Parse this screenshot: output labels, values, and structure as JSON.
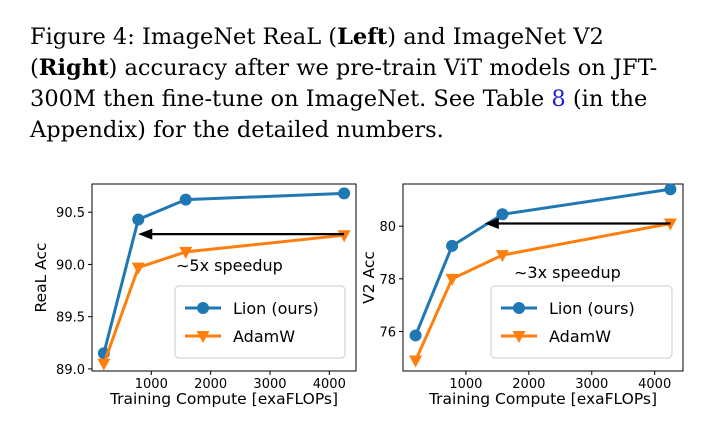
{
  "caption": {
    "prefix": "Figure 4: ImageNet ReaL (",
    "left_word": "Left",
    "mid": ") and ImageNet V2 (",
    "right_word": "Right",
    "mid2": ") accuracy after we pre-train ViT models on JFT-300M then fine-tune on ImageNet. See Table ",
    "table_ref": "8",
    "suffix": " (in the Appendix) for the detailed numbers."
  },
  "colors": {
    "lion": "#1f77b4",
    "adamw": "#ff7f0e",
    "arrow": "#000000"
  },
  "chart_data": [
    {
      "type": "line",
      "xlabel": "Training Compute [exaFLOPs]",
      "ylabel": "ReaL Acc",
      "xlim": [
        0,
        4450
      ],
      "ylim": [
        88.98,
        90.77
      ],
      "xticks": [
        1000,
        2000,
        3000,
        4000
      ],
      "xtick_labels": [
        "1000",
        "2000",
        "3000",
        "4000"
      ],
      "yticks": [
        89.0,
        89.5,
        90.0,
        90.5
      ],
      "ytick_labels": [
        "89.0",
        "89.5",
        "90.0",
        "90.5"
      ],
      "series": [
        {
          "name": "Lion (ours)",
          "marker": "circle",
          "x": [
            200,
            780,
            1580,
            4250
          ],
          "y": [
            89.15,
            90.43,
            90.62,
            90.68
          ]
        },
        {
          "name": "AdamW",
          "marker": "triangle-down",
          "x": [
            200,
            780,
            1580,
            4250
          ],
          "y": [
            89.05,
            89.97,
            90.12,
            90.28
          ]
        }
      ],
      "annotation": {
        "text": "∼5x speedup",
        "arrow_from": [
          4250,
          90.29
        ],
        "arrow_to": [
          780,
          90.29
        ]
      },
      "legend": "lower-right",
      "grid": false
    },
    {
      "type": "line",
      "xlabel": "Training Compute [exaFLOPs]",
      "ylabel": "V2 Acc",
      "xlim": [
        0,
        4450
      ],
      "ylim": [
        74.5,
        81.6
      ],
      "xticks": [
        1000,
        2000,
        3000,
        4000
      ],
      "xtick_labels": [
        "1000",
        "2000",
        "3000",
        "4000"
      ],
      "yticks": [
        76,
        78,
        80
      ],
      "ytick_labels": [
        "76",
        "78",
        "80"
      ],
      "series": [
        {
          "name": "Lion (ours)",
          "marker": "circle",
          "x": [
            200,
            780,
            1580,
            4250
          ],
          "y": [
            75.85,
            79.25,
            80.45,
            81.4
          ]
        },
        {
          "name": "AdamW",
          "marker": "triangle-down",
          "x": [
            200,
            780,
            1580,
            4250
          ],
          "y": [
            74.9,
            78.0,
            78.9,
            80.1
          ]
        }
      ],
      "annotation": {
        "text": "∼3x speedup",
        "arrow_from": [
          4250,
          80.1
        ],
        "arrow_to": [
          1300,
          80.1
        ]
      },
      "legend": "lower-right",
      "grid": false
    }
  ]
}
